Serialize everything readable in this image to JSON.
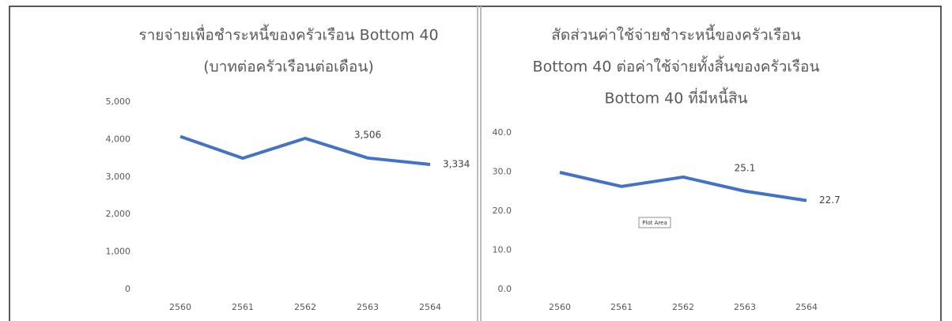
{
  "chart_data": [
    {
      "type": "line",
      "title_lines": [
        "รายจ่ายเพื่อชำระหนี้ของครัวเรือน Bottom 40",
        "(บาทต่อครัวเรือนต่อเดือน)"
      ],
      "categories": [
        "2560",
        "2561",
        "2562",
        "2563",
        "2564"
      ],
      "values": [
        4080,
        3500,
        4030,
        3506,
        3334
      ],
      "value_labels": [
        null,
        null,
        null,
        "3,506",
        "3,334"
      ],
      "color": "#4472c4",
      "ylim": [
        0,
        5000
      ],
      "yticks": [
        0,
        {
          "value": 1000,
          "label": "1,000"
        },
        {
          "value": 2000,
          "label": "2,000"
        },
        {
          "value": 3000,
          "label": "3,000"
        },
        {
          "value": 4000,
          "label": "4,000"
        },
        {
          "value": 5000,
          "label": "5,000"
        }
      ],
      "grid": false
    },
    {
      "type": "line",
      "title_lines": [
        "สัดส่วนค่าใช้จ่ายชำระหนี้ของครัวเรือน",
        "Bottom 40 ต่อค่าใช้จ่ายทั้งสิ้นของครัวเรือน",
        "Bottom 40 ที่มีหนี้สิน"
      ],
      "categories": [
        "2560",
        "2561",
        "2562",
        "2563",
        "2564"
      ],
      "values": [
        29.9,
        26.3,
        28.7,
        25.1,
        22.7
      ],
      "value_labels": [
        null,
        null,
        null,
        "25.1",
        "22.7"
      ],
      "color": "#4472c4",
      "ylim": [
        0,
        40
      ],
      "yticks": [
        {
          "value": 0,
          "label": "0.0"
        },
        {
          "value": 10,
          "label": "10.0"
        },
        {
          "value": 20,
          "label": "20.0"
        },
        {
          "value": 30,
          "label": "30.0"
        },
        {
          "value": 40,
          "label": "40.0"
        }
      ],
      "grid": false,
      "annotation": "Plot Area"
    }
  ]
}
